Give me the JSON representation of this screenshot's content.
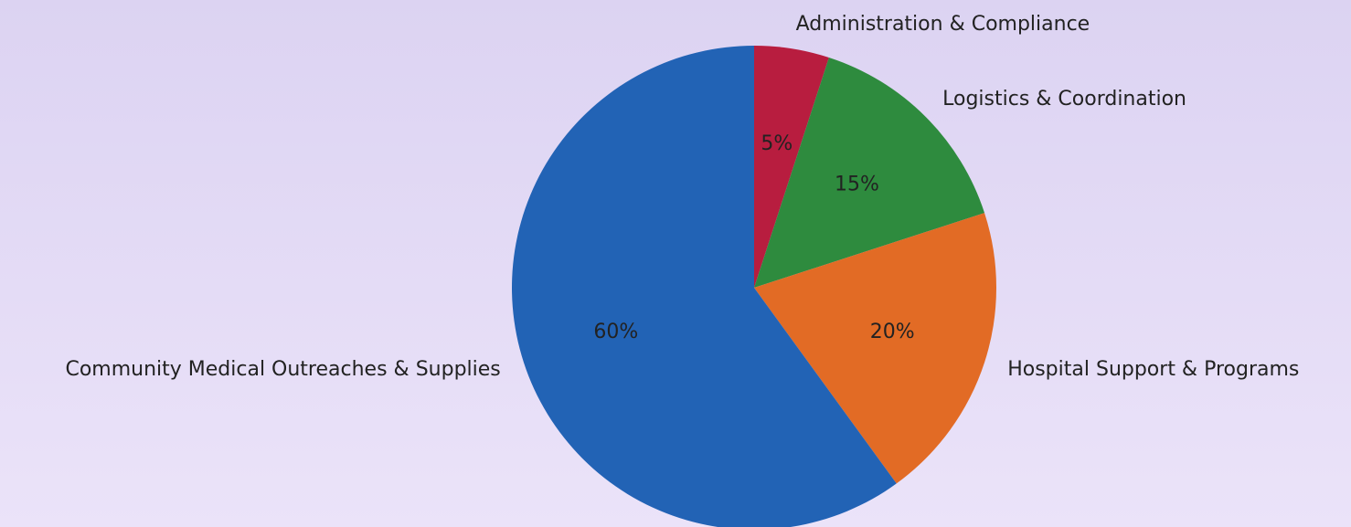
{
  "chart_data": {
    "type": "pie",
    "categories": [
      "Administration & Compliance",
      "Logistics & Coordination",
      "Hospital Support & Programs",
      "Community Medical Outreaches & Supplies"
    ],
    "values": [
      5,
      15,
      20,
      60
    ],
    "value_labels": [
      "5%",
      "15%",
      "20%",
      "60%"
    ],
    "colors": [
      "#b81d3f",
      "#2e8b3e",
      "#e26b25",
      "#2263b5"
    ]
  }
}
